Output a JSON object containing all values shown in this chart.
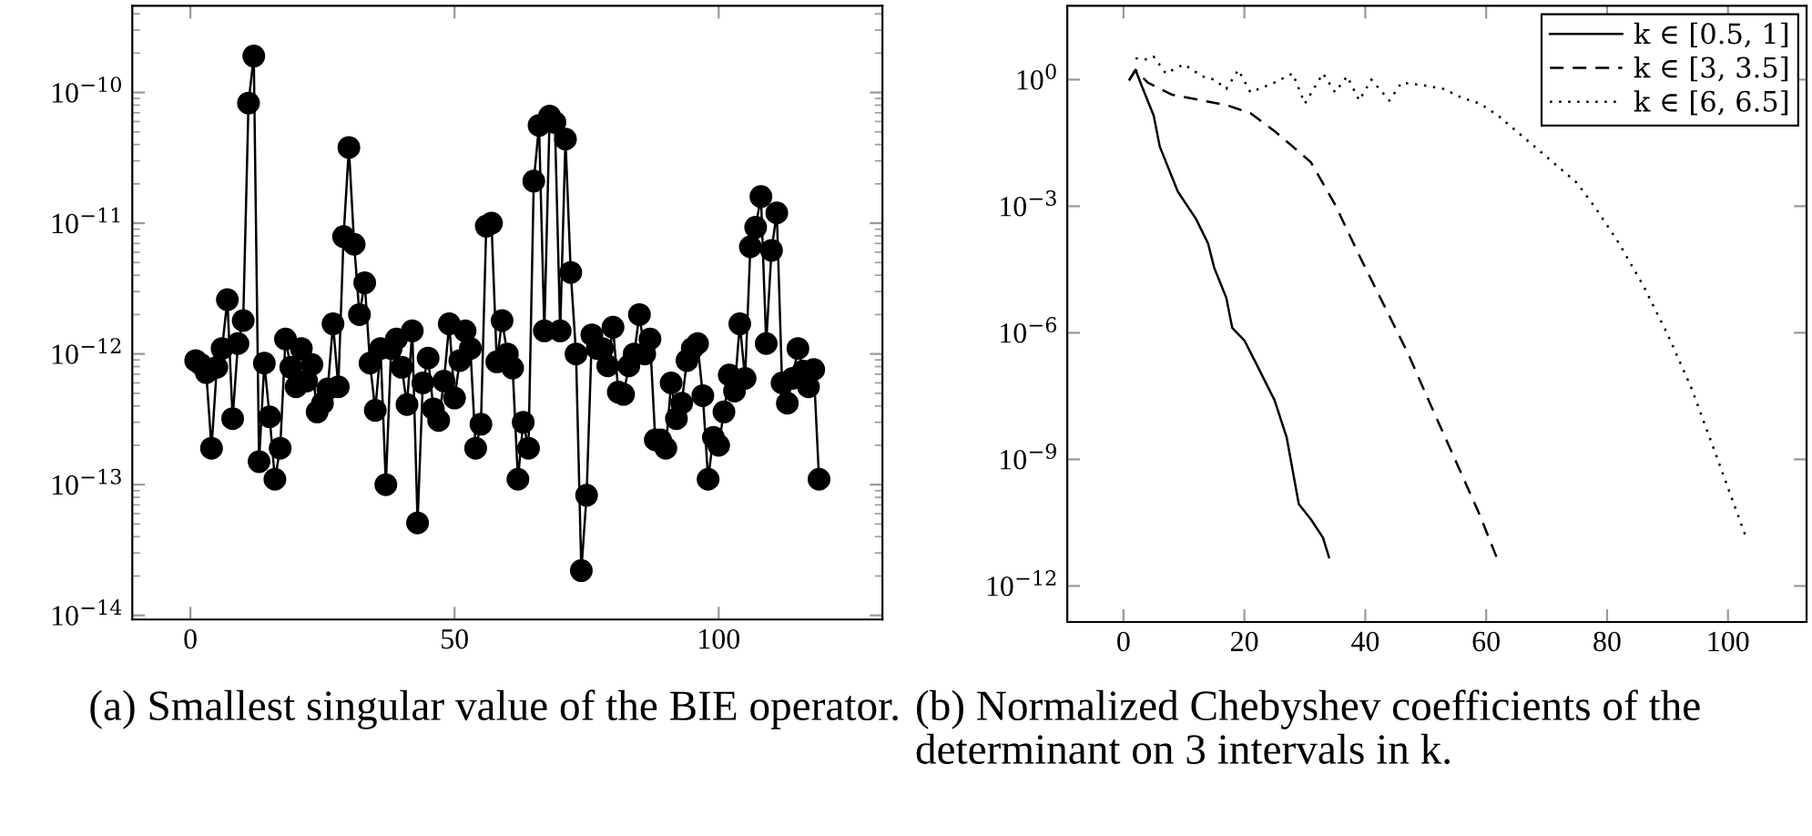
{
  "chart_data": [
    {
      "type": "line",
      "log": "y",
      "marker": "circle",
      "line_style": "solid",
      "grid": false,
      "legend": false,
      "annotations": [
        "(a) Smallest singular value of the BIE operator."
      ],
      "xlim": [
        -11,
        131
      ],
      "xticks": [
        0,
        50,
        100
      ],
      "ylim": [
        9.3e-15,
        4.6e-10
      ],
      "yticks": [
        {
          "value": 1e-14,
          "label": "10$^{−14}$"
        },
        {
          "value": 1e-13,
          "label": "10$^{−13}$"
        },
        {
          "value": 1e-12,
          "label": "10$^{−12}$"
        },
        {
          "value": 1e-11,
          "label": "10$^{−11}$"
        },
        {
          "value": 1e-10,
          "label": "10$^{−10}$"
        }
      ],
      "series": [
        {
          "color": "#000000",
          "x": [
            1,
            2,
            3,
            4,
            5,
            6,
            7,
            8,
            9,
            10,
            11,
            12,
            13,
            14,
            15,
            16,
            17,
            18,
            19,
            20,
            21,
            22,
            23,
            24,
            25,
            26,
            27,
            28,
            29,
            30,
            31,
            32,
            33,
            34,
            35,
            36,
            37,
            38,
            39,
            40,
            41,
            42,
            43,
            44,
            45,
            46,
            47,
            48,
            49,
            50,
            51,
            52,
            53,
            54,
            55,
            56,
            57,
            58,
            59,
            60,
            61,
            62,
            63,
            64,
            65,
            66,
            67,
            68,
            69,
            70,
            71,
            72,
            73,
            74,
            75,
            76,
            77,
            78,
            79,
            80,
            81,
            82,
            83,
            84,
            85,
            86,
            87,
            88,
            89,
            90,
            91,
            92,
            93,
            94,
            95,
            96,
            97,
            98,
            99,
            100,
            101,
            102,
            103,
            104,
            105,
            106,
            107,
            108,
            109,
            110,
            111,
            112,
            113,
            114,
            115,
            116,
            117,
            118,
            119
          ],
          "values": [
            8.9e-13,
            8.3e-13,
            7.2e-13,
            1.9e-13,
            7.9e-13,
            1.1e-12,
            2.6e-12,
            3.2e-13,
            1.2e-12,
            1.8e-12,
            8.3e-11,
            1.9e-10,
            1.5e-13,
            8.5e-13,
            3.3e-13,
            1.1e-13,
            1.9e-13,
            1.3e-12,
            7.9e-13,
            5.6e-13,
            1.1e-12,
            6.2e-13,
            8.3e-13,
            3.6e-13,
            4.2e-13,
            5.4e-13,
            1.7e-12,
            5.6e-13,
            7.9e-12,
            3.8e-11,
            6.9e-12,
            2e-12,
            3.5e-12,
            8.5e-13,
            3.7e-13,
            1.1e-12,
            1e-13,
            1.1e-12,
            1.3e-12,
            7.9e-13,
            4.1e-13,
            1.5e-12,
            5.1e-14,
            6e-13,
            9.3e-13,
            3.8e-13,
            3.1e-13,
            6.2e-13,
            1.7e-12,
            4.6e-13,
            8.9e-13,
            1.5e-12,
            1.1e-12,
            1.9e-13,
            2.9e-13,
            9.5e-12,
            1e-11,
            8.7e-13,
            1.8e-12,
            1e-12,
            7.8e-13,
            1.1e-13,
            3e-13,
            1.9e-13,
            2.1e-11,
            5.6e-11,
            1.5e-12,
            6.6e-11,
            5.9e-11,
            1.5e-12,
            4.4e-11,
            4.2e-12,
            1e-12,
            2.2e-14,
            8.3e-14,
            1.4e-12,
            1.1e-12,
            1.1e-12,
            8.1e-13,
            1.6e-12,
            5.1e-13,
            4.9e-13,
            8.1e-13,
            1e-12,
            2e-12,
            1e-12,
            1.3e-12,
            2.2e-13,
            2.2e-13,
            1.9e-13,
            6e-13,
            3.2e-13,
            4.2e-13,
            8.9e-13,
            1.1e-12,
            1.2e-12,
            4.8e-13,
            1.1e-13,
            2.3e-13,
            2e-13,
            3.6e-13,
            6.9e-13,
            5.2e-13,
            1.7e-12,
            6.5e-13,
            6.6e-12,
            9.3e-12,
            1.6e-11,
            1.2e-12,
            6.2e-12,
            1.2e-11,
            6e-13,
            4.2e-13,
            6.5e-13,
            1.1e-12,
            7.4e-13,
            5.6e-13,
            7.6e-13,
            1.1e-13
          ]
        }
      ]
    },
    {
      "type": "line",
      "log": "y",
      "grid": false,
      "legend": "top right",
      "annotations": [
        "(b) Normalized Chebyshev coefficients of the determinant on 3 intervals in k."
      ],
      "xlim": [
        -9.3,
        113
      ],
      "xticks": [
        0,
        20,
        40,
        60,
        80,
        100
      ],
      "ylim": [
        1.4e-13,
        56
      ],
      "yticks": [
        {
          "value": 1e-12,
          "label": "10$^{−12}$"
        },
        {
          "value": 1e-09,
          "label": "10$^{−9}$"
        },
        {
          "value": 1e-06,
          "label": "10$^{−6}$"
        },
        {
          "value": 0.001,
          "label": "10$^{−3}$"
        },
        {
          "value": 1,
          "label": "10$^{0}$"
        }
      ],
      "series": [
        {
          "name": "k ∈ [0.5, 1]",
          "color": "#000000",
          "line_style": "solid",
          "x": [
            1,
            2,
            3,
            5,
            6,
            8,
            9,
            12,
            14,
            15,
            17,
            18,
            20,
            22,
            25,
            27,
            29,
            31,
            33,
            34
          ],
          "values": [
            1,
            1.7,
            0.72,
            0.14,
            0.026,
            0.005,
            0.0022,
            0.0005,
            0.00013,
            3.5e-05,
            6.8e-06,
            1.3e-06,
            6.6e-07,
            1.8e-07,
            2.5e-08,
            3.3e-09,
            8.7e-11,
            3.8e-11,
            1.4e-11,
            4.8e-12
          ]
        },
        {
          "name": "k ∈ [3, 3.5]",
          "color": "#000000",
          "line_style": "dashed",
          "x": [
            1,
            2,
            4,
            8,
            13,
            17,
            21,
            25,
            28,
            31,
            35,
            39,
            43,
            47,
            51,
            55,
            59,
            62
          ],
          "values": [
            1,
            1.7,
            0.85,
            0.44,
            0.32,
            0.25,
            0.16,
            0.06,
            0.026,
            0.011,
            0.0011,
            6.8e-05,
            4.8e-06,
            3.4e-07,
            1.7e-08,
            8.9e-10,
            4.6e-11,
            3.8e-12
          ]
        },
        {
          "name": "k ∈ [6, 6.5]",
          "color": "#000000",
          "line_style": "dotted",
          "x": [
            2,
            4,
            5,
            7,
            10,
            13,
            15,
            17,
            19,
            21,
            25,
            28,
            30,
            33,
            35,
            37,
            39,
            41,
            44,
            46,
            50,
            53,
            56,
            59,
            62,
            75,
            78,
            82,
            86,
            90,
            94,
            98,
            103
          ],
          "values": [
            3.2,
            3.0,
            3.5,
            1.4,
            2.3,
            1.2,
            1,
            0.6,
            1.7,
            0.5,
            0.85,
            1.4,
            0.27,
            1.4,
            0.5,
            1.2,
            0.32,
            1,
            0.32,
            0.85,
            0.72,
            0.6,
            0.37,
            0.27,
            0.14,
            0.0036,
            0.00095,
            0.00013,
            1.3e-05,
            9.3e-07,
            4.7e-08,
            1.3e-09,
            1.4e-11
          ]
        }
      ]
    }
  ]
}
